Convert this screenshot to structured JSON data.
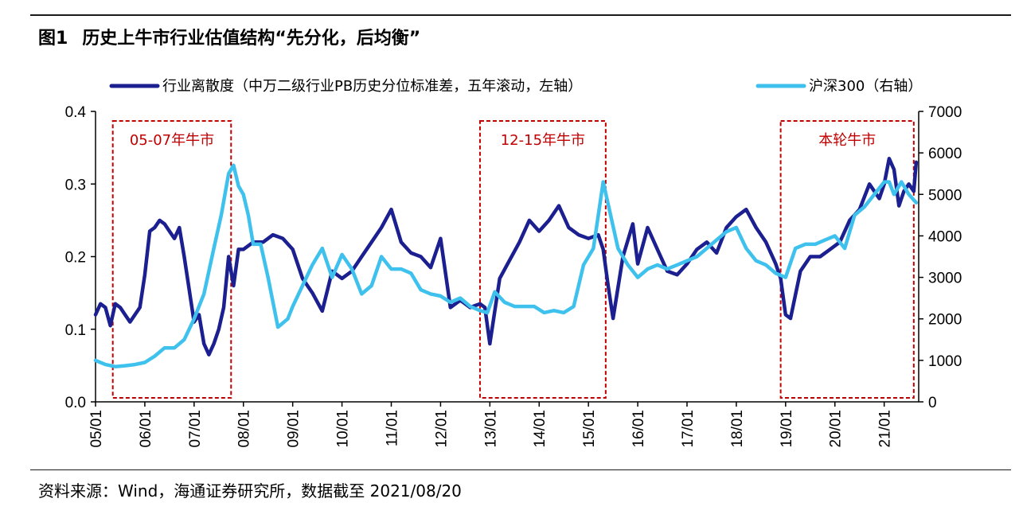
{
  "figure": {
    "number": "图1",
    "title": "历史上牛市行业估值结构“先分化，后均衡”",
    "source": "资料来源：Wind，海通证券研究所，数据截至 2021/08/20"
  },
  "colors": {
    "dispersion": "#1b1f8f",
    "csi300": "#3fc1ee",
    "period_box": "#c00000",
    "axis": "#000000"
  },
  "chart_data": {
    "type": "line",
    "title": "",
    "x_range": [
      2005.0,
      2021.7
    ],
    "x_ticks": [
      2005,
      2006,
      2007,
      2008,
      2009,
      2010,
      2011,
      2012,
      2013,
      2014,
      2015,
      2016,
      2017,
      2018,
      2019,
      2020,
      2021
    ],
    "x_tick_labels": [
      "05/01",
      "06/01",
      "07/01",
      "08/01",
      "09/01",
      "10/01",
      "11/01",
      "12/01",
      "13/01",
      "14/01",
      "15/01",
      "16/01",
      "17/01",
      "18/01",
      "19/01",
      "20/01",
      "21/01"
    ],
    "left_axis": {
      "label": "左轴",
      "range": [
        0.0,
        0.4
      ],
      "ticks": [
        0.0,
        0.1,
        0.2,
        0.3,
        0.4
      ],
      "tick_labels": [
        "0.0",
        "0.1",
        "0.2",
        "0.3",
        "0.4"
      ]
    },
    "right_axis": {
      "label": "右轴",
      "range": [
        0,
        7000
      ],
      "ticks": [
        0,
        1000,
        2000,
        3000,
        4000,
        5000,
        6000,
        7000
      ],
      "tick_labels": [
        "0",
        "1000",
        "2000",
        "3000",
        "4000",
        "5000",
        "6000",
        "7000"
      ]
    },
    "series": [
      {
        "name": "行业离散度（中万二级行业PB历史分位标准差，五年滚动，左轴）",
        "axis": "left",
        "color": "#1b1f8f",
        "x": [
          2005.0,
          2005.1,
          2005.2,
          2005.3,
          2005.4,
          2005.5,
          2005.6,
          2005.7,
          2005.8,
          2005.9,
          2006.0,
          2006.1,
          2006.2,
          2006.3,
          2006.4,
          2006.5,
          2006.6,
          2006.7,
          2006.8,
          2006.9,
          2007.0,
          2007.1,
          2007.2,
          2007.3,
          2007.4,
          2007.5,
          2007.6,
          2007.7,
          2007.8,
          2007.9,
          2008.0,
          2008.2,
          2008.4,
          2008.6,
          2008.8,
          2009.0,
          2009.2,
          2009.4,
          2009.6,
          2009.8,
          2010.0,
          2010.2,
          2010.4,
          2010.6,
          2010.8,
          2011.0,
          2011.2,
          2011.4,
          2011.6,
          2011.8,
          2012.0,
          2012.2,
          2012.4,
          2012.6,
          2012.8,
          2012.9,
          2013.0,
          2013.2,
          2013.4,
          2013.6,
          2013.8,
          2014.0,
          2014.2,
          2014.4,
          2014.6,
          2014.8,
          2015.0,
          2015.2,
          2015.3,
          2015.4,
          2015.5,
          2015.7,
          2015.9,
          2016.0,
          2016.2,
          2016.4,
          2016.6,
          2016.8,
          2017.0,
          2017.2,
          2017.4,
          2017.6,
          2017.8,
          2018.0,
          2018.2,
          2018.4,
          2018.6,
          2018.8,
          2018.9,
          2019.0,
          2019.1,
          2019.3,
          2019.5,
          2019.7,
          2019.9,
          2020.1,
          2020.3,
          2020.5,
          2020.7,
          2020.9,
          2021.0,
          2021.1,
          2021.2,
          2021.3,
          2021.4,
          2021.5,
          2021.6,
          2021.65
        ],
        "values": [
          0.12,
          0.135,
          0.13,
          0.105,
          0.135,
          0.13,
          0.12,
          0.11,
          0.12,
          0.13,
          0.175,
          0.235,
          0.24,
          0.25,
          0.245,
          0.235,
          0.225,
          0.24,
          0.2,
          0.155,
          0.11,
          0.12,
          0.08,
          0.065,
          0.08,
          0.1,
          0.13,
          0.2,
          0.16,
          0.21,
          0.21,
          0.22,
          0.22,
          0.23,
          0.225,
          0.21,
          0.17,
          0.15,
          0.125,
          0.18,
          0.17,
          0.18,
          0.2,
          0.22,
          0.24,
          0.265,
          0.22,
          0.205,
          0.2,
          0.185,
          0.225,
          0.13,
          0.14,
          0.13,
          0.135,
          0.13,
          0.08,
          0.17,
          0.195,
          0.22,
          0.25,
          0.235,
          0.25,
          0.27,
          0.24,
          0.23,
          0.225,
          0.23,
          0.21,
          0.16,
          0.115,
          0.2,
          0.245,
          0.19,
          0.24,
          0.21,
          0.18,
          0.175,
          0.19,
          0.21,
          0.22,
          0.205,
          0.24,
          0.255,
          0.265,
          0.24,
          0.22,
          0.19,
          0.17,
          0.12,
          0.115,
          0.18,
          0.2,
          0.2,
          0.21,
          0.22,
          0.25,
          0.265,
          0.3,
          0.28,
          0.3,
          0.335,
          0.32,
          0.27,
          0.29,
          0.3,
          0.29,
          0.33
        ]
      },
      {
        "name": "沪深300（右轴）",
        "axis": "right",
        "color": "#3fc1ee",
        "x": [
          2005.0,
          2005.2,
          2005.4,
          2005.6,
          2005.8,
          2006.0,
          2006.2,
          2006.4,
          2006.6,
          2006.8,
          2007.0,
          2007.2,
          2007.4,
          2007.55,
          2007.7,
          2007.8,
          2007.9,
          2008.0,
          2008.1,
          2008.2,
          2008.35,
          2008.5,
          2008.7,
          2008.9,
          2009.0,
          2009.2,
          2009.4,
          2009.6,
          2009.8,
          2010.0,
          2010.2,
          2010.4,
          2010.6,
          2010.8,
          2011.0,
          2011.2,
          2011.4,
          2011.6,
          2011.8,
          2012.0,
          2012.2,
          2012.4,
          2012.6,
          2012.8,
          2012.95,
          2013.1,
          2013.3,
          2013.5,
          2013.7,
          2013.9,
          2014.1,
          2014.3,
          2014.5,
          2014.7,
          2014.9,
          2015.1,
          2015.3,
          2015.45,
          2015.6,
          2015.8,
          2016.0,
          2016.2,
          2016.4,
          2016.6,
          2016.8,
          2017.0,
          2017.2,
          2017.4,
          2017.6,
          2017.8,
          2018.0,
          2018.2,
          2018.4,
          2018.6,
          2018.8,
          2019.0,
          2019.2,
          2019.4,
          2019.6,
          2019.8,
          2020.0,
          2020.2,
          2020.4,
          2020.6,
          2020.8,
          2021.0,
          2021.1,
          2021.2,
          2021.35,
          2021.5,
          2021.65
        ],
        "values": [
          1000,
          900,
          850,
          870,
          900,
          950,
          1100,
          1300,
          1300,
          1500,
          2000,
          2600,
          3700,
          4500,
          5500,
          5700,
          5200,
          5000,
          4500,
          3800,
          3800,
          3000,
          1800,
          2000,
          2300,
          2800,
          3300,
          3700,
          3000,
          3550,
          3200,
          2600,
          2800,
          3500,
          3200,
          3200,
          3100,
          2700,
          2600,
          2550,
          2400,
          2500,
          2300,
          2200,
          2150,
          2650,
          2400,
          2300,
          2300,
          2300,
          2150,
          2200,
          2150,
          2300,
          3300,
          3700,
          5300,
          4500,
          3700,
          3300,
          3000,
          3200,
          3300,
          3200,
          3300,
          3400,
          3500,
          3700,
          3900,
          4100,
          4200,
          3700,
          3400,
          3300,
          3100,
          3000,
          3700,
          3800,
          3800,
          3900,
          4000,
          3700,
          4500,
          4700,
          5000,
          5300,
          5300,
          5000,
          5300,
          5000,
          4800
        ]
      }
    ],
    "periods": [
      {
        "label": "05-07年牛市",
        "start": 2005.35,
        "end": 2007.75
      },
      {
        "label": "12-15年牛市",
        "start": 2012.8,
        "end": 2015.35
      },
      {
        "label": "本轮牛市",
        "start": 2018.9,
        "end": 2021.6
      }
    ],
    "legend_position": "top"
  }
}
